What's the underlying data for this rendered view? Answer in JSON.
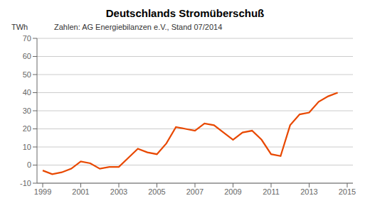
{
  "chart_data": {
    "type": "line",
    "title": "Deutschlands Stromüberschuß",
    "subtitle": "Zahlen: AG Energiebilanzen e.V., Stand 07/2014",
    "ylabel": "TWh",
    "color": "#e84800",
    "grid": "y",
    "xlim": [
      1998.7,
      2015.3
    ],
    "ylim": [
      -10,
      70
    ],
    "xticks": [
      1999,
      2001,
      2003,
      2005,
      2007,
      2009,
      2011,
      2013,
      2015
    ],
    "yticks": [
      -10,
      0,
      10,
      20,
      30,
      40,
      50,
      60,
      70
    ],
    "x": [
      1999,
      1999.5,
      2000,
      2000.5,
      2001,
      2001.5,
      2002,
      2002.5,
      2003,
      2003.5,
      2004,
      2004.5,
      2005,
      2005.5,
      2006,
      2006.5,
      2007,
      2007.5,
      2008,
      2008.5,
      2009,
      2009.5,
      2010,
      2010.5,
      2011,
      2011.5,
      2012,
      2012.5,
      2013,
      2013.5,
      2014,
      2014.5
    ],
    "values": [
      -3,
      -5,
      -4,
      -2,
      2,
      1,
      -2,
      -1,
      -1,
      4,
      9,
      7,
      6,
      12,
      21,
      20,
      19,
      23,
      22,
      18,
      14,
      18,
      19,
      14,
      6,
      5,
      22,
      28,
      29,
      35,
      38,
      40
    ]
  }
}
